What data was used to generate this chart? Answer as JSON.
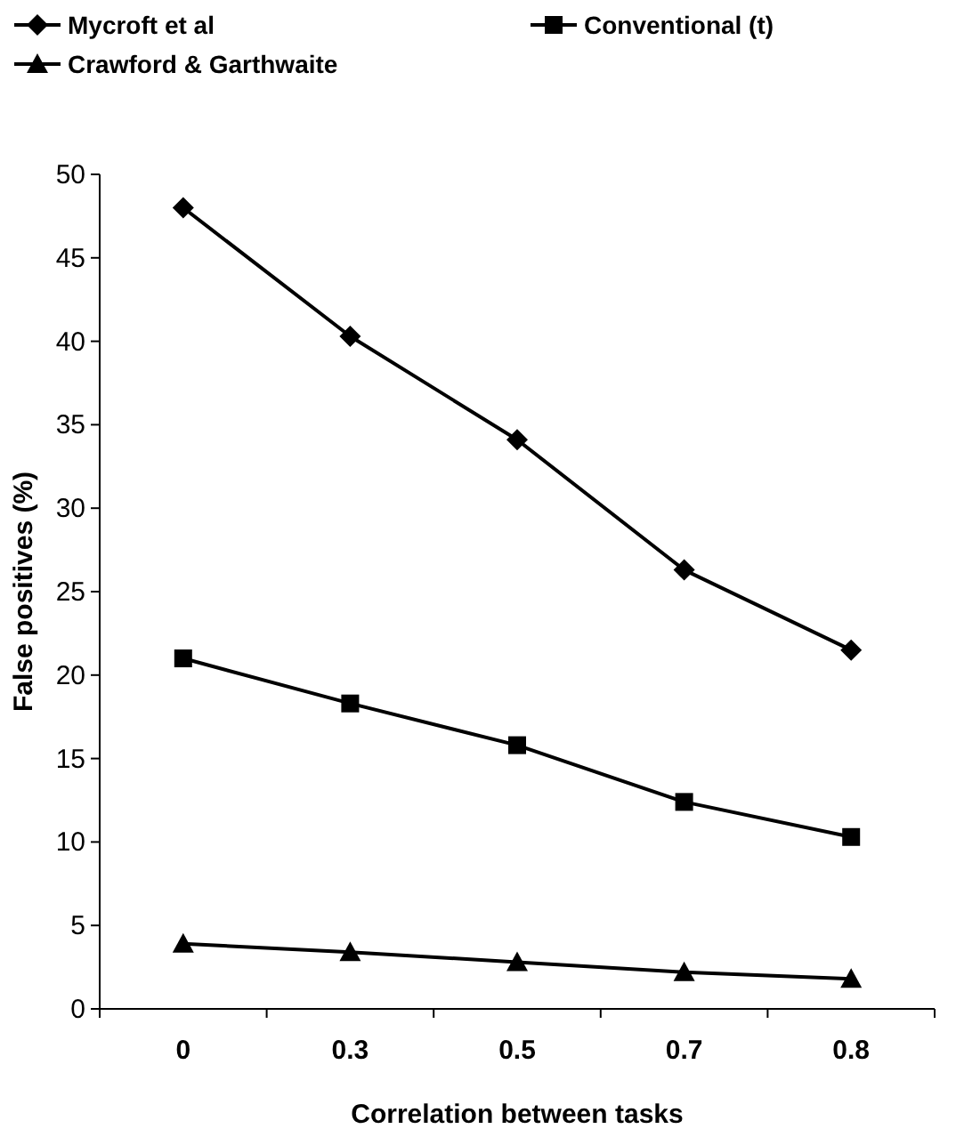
{
  "chart_data": {
    "type": "line",
    "xlabel": "Correlation between tasks",
    "ylabel": "False positives (%)",
    "categories": [
      "0",
      "0.3",
      "0.5",
      "0.7",
      "0.8"
    ],
    "ylim": [
      0,
      50
    ],
    "yticks": [
      0,
      5,
      10,
      15,
      20,
      25,
      30,
      35,
      40,
      45,
      50
    ],
    "grid": false,
    "legend": "top",
    "series": [
      {
        "name": "Mycroft et al",
        "color": "#000000",
        "marker": "diamond",
        "values": [
          48,
          40.3,
          34.1,
          26.3,
          21.5
        ]
      },
      {
        "name": "Conventional (t)",
        "color": "#000000",
        "marker": "square",
        "values": [
          21,
          18.3,
          15.8,
          12.4,
          10.3
        ]
      },
      {
        "name": "Crawford & Garthwaite",
        "color": "#000000",
        "marker": "triangle",
        "values": [
          3.9,
          3.4,
          2.8,
          2.2,
          1.8
        ]
      }
    ]
  }
}
